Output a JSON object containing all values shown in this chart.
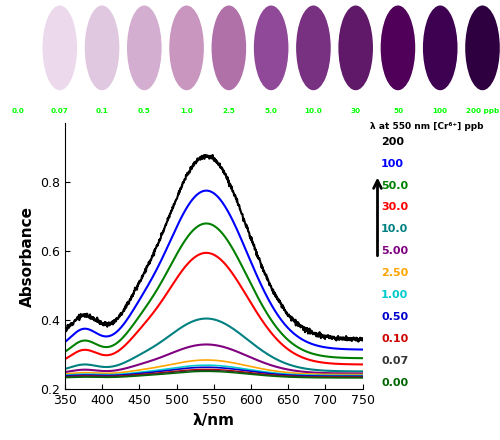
{
  "xlabel": "λ/nm",
  "ylabel": "Absorbance",
  "xlim": [
    350,
    750
  ],
  "ylim": [
    0.2,
    0.97
  ],
  "xticks": [
    350,
    400,
    450,
    500,
    550,
    600,
    650,
    700,
    750
  ],
  "yticks": [
    0.2,
    0.4,
    0.6,
    0.8
  ],
  "legend_title": "λ at 550 nm [Cr⁶⁺] ppb",
  "line_params": [
    {
      "label": "200",
      "color": "#000000",
      "peak": 0.875,
      "base": 0.345,
      "lw": 1.5,
      "noise": true
    },
    {
      "label": "100",
      "color": "#0000ff",
      "peak": 0.775,
      "base": 0.315,
      "lw": 1.5,
      "noise": false
    },
    {
      "label": "50.0",
      "color": "#008000",
      "peak": 0.68,
      "base": 0.29,
      "lw": 1.5,
      "noise": false
    },
    {
      "label": "30.0",
      "color": "#ff0000",
      "peak": 0.595,
      "base": 0.272,
      "lw": 1.5,
      "noise": false
    },
    {
      "label": "10.0",
      "color": "#008080",
      "peak": 0.405,
      "base": 0.252,
      "lw": 1.5,
      "noise": false
    },
    {
      "label": "5.00",
      "color": "#800080",
      "peak": 0.33,
      "base": 0.246,
      "lw": 1.5,
      "noise": false
    },
    {
      "label": "2.50",
      "color": "#ffa500",
      "peak": 0.285,
      "base": 0.243,
      "lw": 1.2,
      "noise": false
    },
    {
      "label": "1.00",
      "color": "#00cccc",
      "peak": 0.27,
      "base": 0.24,
      "lw": 1.2,
      "noise": false
    },
    {
      "label": "0.50",
      "color": "#0000cc",
      "peak": 0.264,
      "base": 0.238,
      "lw": 1.2,
      "noise": false
    },
    {
      "label": "0.10",
      "color": "#cc0000",
      "peak": 0.258,
      "base": 0.236,
      "lw": 1.0,
      "noise": false
    },
    {
      "label": "0.07",
      "color": "#333333",
      "peak": 0.255,
      "base": 0.235,
      "lw": 1.0,
      "noise": false
    },
    {
      "label": "0.00",
      "color": "#006600",
      "peak": 0.252,
      "base": 0.233,
      "lw": 1.0,
      "noise": false
    }
  ],
  "circle_fills": [
    "#ffffff",
    "#ecdaec",
    "#e0c8e0",
    "#d4aed0",
    "#c896be",
    "#b070a8",
    "#904898",
    "#783080",
    "#601868",
    "#500058",
    "#3e0050",
    "#2e0040"
  ],
  "circle_labels": [
    "0.0",
    "0.07",
    "0.1",
    "0.5",
    "1.0",
    "2.5",
    "5.0",
    "10.0",
    "30",
    "50",
    "100",
    "200 ppb"
  ]
}
